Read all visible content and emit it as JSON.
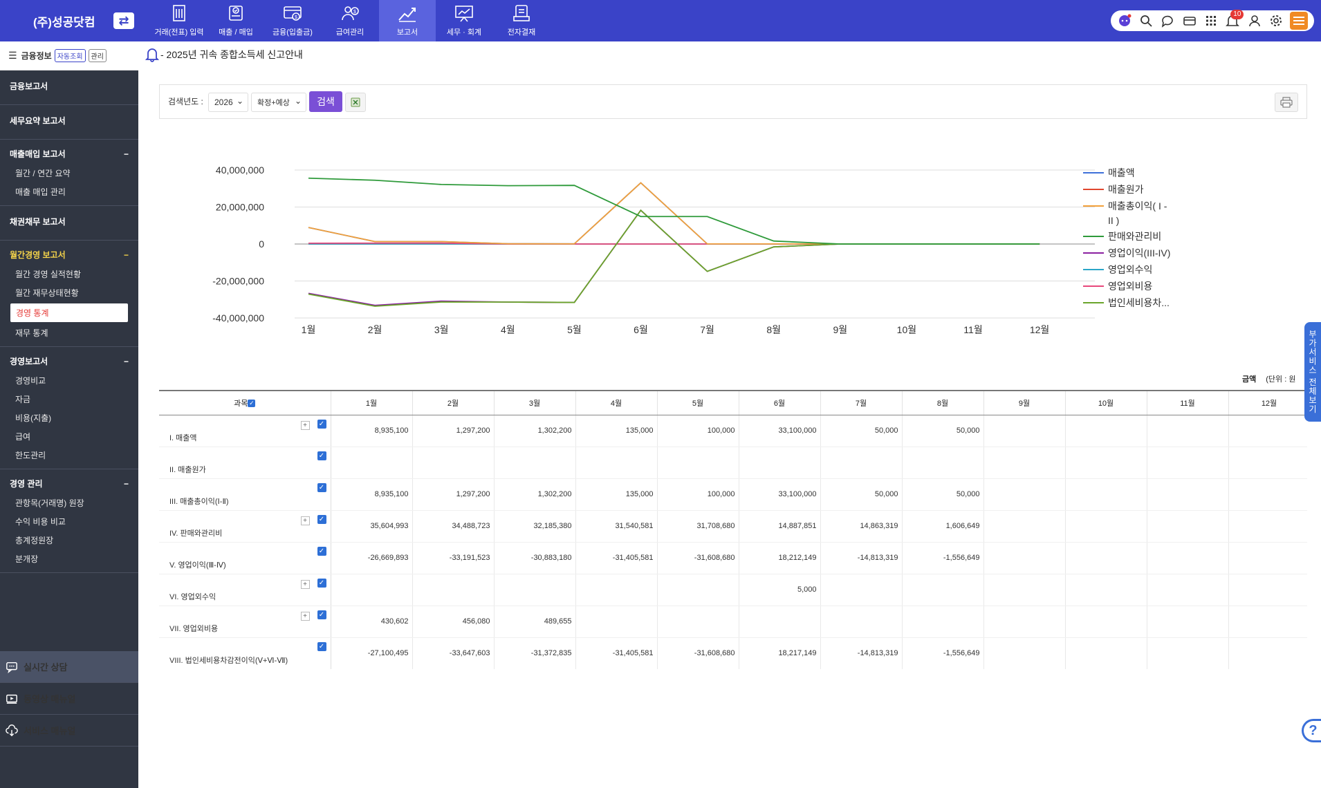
{
  "company": "(주)성공닷컴",
  "nav": [
    {
      "label": "거래(전표) 입력",
      "icon": "building-icon"
    },
    {
      "label": "매출 / 매입",
      "icon": "receipt-icon"
    },
    {
      "label": "금융(입출금)",
      "icon": "card-icon"
    },
    {
      "label": "급여관리",
      "icon": "payroll-icon"
    },
    {
      "label": "보고서",
      "icon": "report-chart-icon"
    },
    {
      "label": "세무 · 회계",
      "icon": "presentation-icon"
    },
    {
      "label": "전자결재",
      "icon": "approval-icon"
    }
  ],
  "top_icons": [
    "chatbot-icon",
    "search-icon",
    "chat-icon",
    "wallet-icon",
    "apps-grid-icon",
    "bell-icon",
    "user-icon",
    "gear-icon"
  ],
  "notification_count": "10",
  "sidebar": {
    "header": "금융정보",
    "header_btn1": "자동조회",
    "header_btn2": "관리",
    "sections": [
      {
        "title": "금융보고서",
        "items": []
      },
      {
        "title": "세무요약 보고서",
        "items": []
      },
      {
        "title": "매출매입 보고서",
        "collapse": "−",
        "items": [
          "월간 / 연간 요약",
          "매출 매입 관리"
        ]
      },
      {
        "title": "채권채무 보고서",
        "items": []
      },
      {
        "title": "월간경영 보고서",
        "collapse": "−",
        "items": [
          "월간 경영 실적현황",
          "월간 재무상태현황",
          "경영 통계",
          "재무 통계"
        ]
      },
      {
        "title": "경영보고서",
        "collapse": "−",
        "items": [
          "경영비교",
          "자금",
          "비용(지출)",
          "급여",
          "한도관리"
        ]
      },
      {
        "title": "경영 관리",
        "collapse": "−",
        "items": [
          "관항목(거래명) 원장",
          "수익 비용 비교",
          "총계정원장",
          "분개장"
        ]
      }
    ],
    "active_item": "경영 통계",
    "bottom": [
      "실시간 상담",
      "동영상 매뉴얼",
      "서비스 매뉴얼"
    ]
  },
  "notice": "- 2025년 귀속 종합소득세 신고안내",
  "search": {
    "label": "검색년도 :",
    "year": "2026",
    "mode": "확정+예상",
    "button": "검색"
  },
  "chart_data": {
    "type": "line",
    "categories": [
      "1월",
      "2월",
      "3월",
      "4월",
      "5월",
      "6월",
      "7월",
      "8월",
      "9월",
      "10월",
      "11월",
      "12월"
    ],
    "y_ticks": [
      "40,000,000",
      "20,000,000",
      "0",
      "-20,000,000",
      "-40,000,000"
    ],
    "ylim": [
      -40000000,
      40000000
    ],
    "legend_position": "right",
    "series": [
      {
        "name": "매출액",
        "color": "#3d6fd9",
        "values": [
          8935100,
          1297200,
          1302200,
          135000,
          100000,
          33100000,
          50000,
          50000,
          0,
          0,
          0,
          0
        ]
      },
      {
        "name": "매출원가",
        "color": "#e0462e",
        "values": [
          0,
          0,
          0,
          0,
          0,
          0,
          0,
          0,
          0,
          0,
          0,
          0
        ]
      },
      {
        "name": "매출총이익( I - II )",
        "color": "#f2a03a",
        "values": [
          8935100,
          1297200,
          1302200,
          135000,
          100000,
          33100000,
          50000,
          50000,
          0,
          0,
          0,
          0
        ]
      },
      {
        "name": "판매와관리비",
        "color": "#2e9a3a",
        "values": [
          35604993,
          34488723,
          32185380,
          31540581,
          31708680,
          14887851,
          14863319,
          1606649,
          0,
          0,
          0,
          0
        ]
      },
      {
        "name": "영업이익(III-IV)",
        "color": "#8a1fa0",
        "values": [
          -26669893,
          -33191523,
          -30883180,
          -31405581,
          -31608680,
          18212149,
          -14813319,
          -1556649,
          0,
          0,
          0,
          0
        ]
      },
      {
        "name": "영업외수익",
        "color": "#2aa6c8",
        "values": [
          0,
          0,
          0,
          0,
          0,
          5000,
          0,
          0,
          0,
          0,
          0,
          0
        ]
      },
      {
        "name": "영업외비용",
        "color": "#e8477a",
        "values": [
          430602,
          456080,
          489655,
          0,
          0,
          0,
          0,
          0,
          0,
          0,
          0,
          0
        ]
      },
      {
        "name": "법인세비용차...",
        "color": "#6aa52a",
        "values": [
          -27100495,
          -33647603,
          -31372835,
          -31405581,
          -31608680,
          18217149,
          -14813319,
          -1556649,
          0,
          0,
          0,
          0
        ]
      }
    ]
  },
  "unit": {
    "label": "금액",
    "text": "(단위 : 원"
  },
  "table": {
    "subject_header": "과목",
    "months": [
      "1월",
      "2월",
      "3월",
      "4월",
      "5월",
      "6월",
      "7월",
      "8월",
      "9월",
      "10월",
      "11월",
      "12월"
    ],
    "rows": [
      {
        "label": "I. 매출액",
        "plus": true,
        "cells": [
          "8,935,100",
          "1,297,200",
          "1,302,200",
          "135,000",
          "100,000",
          "33,100,000",
          "50,000",
          "50,000",
          "",
          "",
          "",
          ""
        ]
      },
      {
        "label": "II. 매출원가",
        "plus": false,
        "cells": [
          "",
          "",
          "",
          "",
          "",
          "",
          "",
          "",
          "",
          "",
          "",
          ""
        ]
      },
      {
        "label": "III. 매출총이익(Ⅰ-Ⅱ)",
        "plus": false,
        "cells": [
          "8,935,100",
          "1,297,200",
          "1,302,200",
          "135,000",
          "100,000",
          "33,100,000",
          "50,000",
          "50,000",
          "",
          "",
          "",
          ""
        ]
      },
      {
        "label": "IV. 판매와관리비",
        "plus": true,
        "cells": [
          "35,604,993",
          "34,488,723",
          "32,185,380",
          "31,540,581",
          "31,708,680",
          "14,887,851",
          "14,863,319",
          "1,606,649",
          "",
          "",
          "",
          ""
        ]
      },
      {
        "label": "V. 영업이익(Ⅲ-Ⅳ)",
        "plus": false,
        "cells": [
          "-26,669,893",
          "-33,191,523",
          "-30,883,180",
          "-31,405,581",
          "-31,608,680",
          "18,212,149",
          "-14,813,319",
          "-1,556,649",
          "",
          "",
          "",
          ""
        ]
      },
      {
        "label": "VI. 영업외수익",
        "plus": true,
        "cells": [
          "",
          "",
          "",
          "",
          "",
          "5,000",
          "",
          "",
          "",
          "",
          "",
          ""
        ]
      },
      {
        "label": "VII. 영업외비용",
        "plus": true,
        "cells": [
          "430,602",
          "456,080",
          "489,655",
          "",
          "",
          "",
          "",
          "",
          "",
          "",
          "",
          ""
        ]
      },
      {
        "label": "VIII. 법인세비용차감전이익(Ⅴ+Ⅵ-Ⅶ)",
        "plus": false,
        "cells": [
          "-27,100,495",
          "-33,647,603",
          "-31,372,835",
          "-31,405,581",
          "-31,608,680",
          "18,217,149",
          "-14,813,319",
          "-1,556,649",
          "",
          "",
          "",
          ""
        ]
      }
    ]
  },
  "side_tab": "부가서비스 전체보기",
  "help": "?"
}
